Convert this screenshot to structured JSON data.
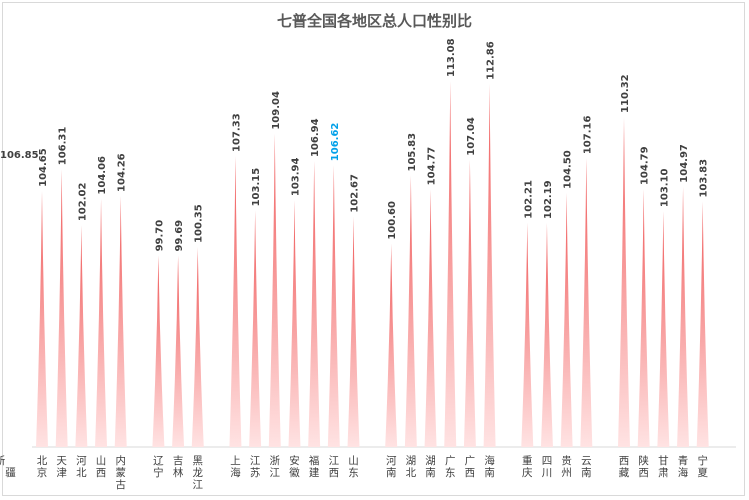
{
  "chart_data": {
    "type": "bar",
    "title": "七普全国各地区总人口性别比",
    "categories": [
      "北京",
      "天津",
      "河北",
      "山西",
      "内蒙古",
      "辽宁",
      "吉林",
      "黑龙江",
      "上海",
      "江苏",
      "浙江",
      "安徽",
      "福建",
      "江西",
      "山东",
      "河南",
      "湖北",
      "湖南",
      "广东",
      "广西",
      "海南",
      "重庆",
      "四川",
      "贵州",
      "云南",
      "西藏",
      "陕西",
      "甘肃",
      "青海",
      "宁夏",
      "新疆"
    ],
    "values": [
      104.65,
      106.31,
      102.02,
      104.06,
      104.26,
      99.7,
      99.69,
      100.35,
      107.33,
      103.15,
      109.04,
      103.94,
      106.94,
      106.62,
      102.67,
      100.6,
      105.83,
      104.77,
      113.08,
      107.04,
      112.86,
      102.21,
      102.19,
      104.5,
      107.16,
      110.32,
      104.79,
      103.1,
      104.97,
      103.83,
      106.85
    ],
    "value_labels": [
      "104.65",
      "106.31",
      "102.02",
      "104.06",
      "104.26",
      "99.70",
      "99.69",
      "100.35",
      "107.33",
      "103.15",
      "109.04",
      "103.94",
      "106.94",
      "106.62",
      "102.67",
      "100.60",
      "105.83",
      "104.77",
      "113.08",
      "107.04",
      "112.86",
      "102.21",
      "102.19",
      "104.50",
      "107.16",
      "110.32",
      "104.79",
      "103.10",
      "104.97",
      "103.83",
      "106.85"
    ],
    "groups": [
      5,
      3,
      7,
      6,
      4,
      5
    ],
    "highlight_index": 13,
    "ylim": [
      85,
      114
    ],
    "colors": {
      "bar_top": "#f05a5a",
      "bar_bottom": "#ffe3e3",
      "label": "#404040",
      "highlight": "#00a0e9",
      "axis": "#d9d9d9",
      "title": "#595959"
    }
  }
}
